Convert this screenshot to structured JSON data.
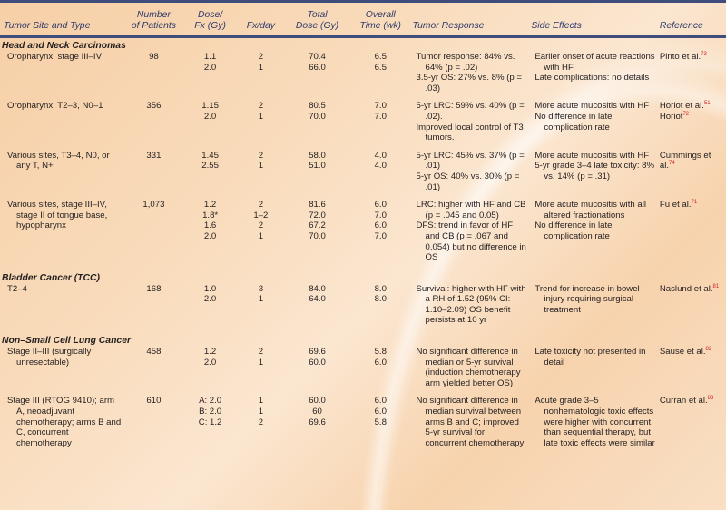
{
  "table": {
    "columns": [
      "Tumor Site and Type",
      "Number of Patients",
      "Dose/ Fx (Gy)",
      "Fx/day",
      "Total Dose (Gy)",
      "Overall Time (wk)",
      "Tumor Response",
      "Side Effects",
      "Reference"
    ],
    "header_lines": {
      "patients": [
        "Number",
        "of Patients"
      ],
      "dose": [
        "Dose/",
        "Fx (Gy)"
      ],
      "total": [
        "Total",
        "Dose (Gy)"
      ],
      "time": [
        "Overall",
        "Time (wk)"
      ]
    },
    "sections": [
      {
        "title": "Head and Neck Carcinomas",
        "rows": [
          {
            "site": "Oropharynx, stage III–IV",
            "patients": "98",
            "dose_fx": [
              "1.1",
              "2.0"
            ],
            "fx_day": [
              "2",
              "1"
            ],
            "total_dose": [
              "70.4",
              "66.0"
            ],
            "overall_time": [
              "6.5",
              "6.5"
            ],
            "tumor_response": [
              "Tumor response: 84% vs. 64% (p = .02)",
              "3.5-yr OS: 27% vs. 8% (p = .03)"
            ],
            "side_effects": [
              "Earlier onset of acute reactions with HF",
              "Late complications: no details"
            ],
            "reference": [
              {
                "text": "Pinto et al.",
                "sup": "73"
              }
            ]
          },
          {
            "site": "Oropharynx, T2–3, N0–1",
            "patients": "356",
            "dose_fx": [
              "1.15",
              "2.0"
            ],
            "fx_day": [
              "2",
              "1"
            ],
            "total_dose": [
              "80.5",
              "70.0"
            ],
            "overall_time": [
              "7.0",
              "7.0"
            ],
            "tumor_response": [
              "5-yr LRC: 59% vs. 40% (p = .02).",
              "Improved local control of T3 tumors."
            ],
            "side_effects": [
              "More acute mucositis with HF",
              "No difference in late complication rate"
            ],
            "reference": [
              {
                "text": "Horiot et al.",
                "sup": "51"
              },
              {
                "text": "Horiot",
                "sup": "72"
              }
            ]
          },
          {
            "site": "Various sites, T3–4, N0, or any T, N+",
            "patients": "331",
            "dose_fx": [
              "1.45",
              "2.55"
            ],
            "fx_day": [
              "2",
              "1"
            ],
            "total_dose": [
              "58.0",
              "51.0"
            ],
            "overall_time": [
              "4.0",
              "4.0"
            ],
            "tumor_response": [
              "5-yr LRC: 45% vs. 37% (p = .01)",
              "5-yr OS: 40% vs. 30% (p = .01)"
            ],
            "side_effects": [
              "More acute mucositis with HF",
              "5-yr grade 3–4 late toxicity: 8% vs. 14% (p = .31)"
            ],
            "reference": [
              {
                "text": "Cummings et al.",
                "sup": "74"
              }
            ]
          },
          {
            "site": "Various sites, stage III–IV, stage II of tongue base, hypopharynx",
            "patients": "1,073",
            "dose_fx": [
              "1.2",
              "1.8*",
              "1.6",
              "2.0"
            ],
            "fx_day": [
              "2",
              "1–2",
              "2",
              "1"
            ],
            "total_dose": [
              "81.6",
              "72.0",
              "67.2",
              "70.0"
            ],
            "overall_time": [
              "6.0",
              "7.0",
              "6.0",
              "7.0"
            ],
            "tumor_response": [
              "LRC: higher with HF and CB (p = .045 and 0.05)",
              "DFS: trend in favor of HF and CB (p = .067 and 0.054) but no difference in OS"
            ],
            "side_effects": [
              "More acute mucositis with all altered fractionations",
              "No difference in late complication rate"
            ],
            "reference": [
              {
                "text": "Fu et al.",
                "sup": "71"
              }
            ]
          }
        ]
      },
      {
        "title": "Bladder Cancer (TCC)",
        "rows": [
          {
            "site": "T2–4",
            "patients": "168",
            "dose_fx": [
              "1.0",
              "2.0"
            ],
            "fx_day": [
              "3",
              "1"
            ],
            "total_dose": [
              "84.0",
              "64.0"
            ],
            "overall_time": [
              "8.0",
              "8.0"
            ],
            "tumor_response": [
              "Survival: higher with HF with a RH of 1.52 (95% CI: 1.10–2.09) OS benefit persists at 10 yr"
            ],
            "side_effects": [
              "Trend for increase in bowel injury requiring surgical treatment"
            ],
            "reference": [
              {
                "text": "Naslund et al.",
                "sup": "81"
              }
            ]
          }
        ]
      },
      {
        "title": "Non–Small Cell Lung Cancer",
        "rows": [
          {
            "site": "Stage II–III (surgically unresectable)",
            "patients": "458",
            "dose_fx": [
              "1.2",
              "2.0"
            ],
            "fx_day": [
              "2",
              "1"
            ],
            "total_dose": [
              "69.6",
              "60.0"
            ],
            "overall_time": [
              "5.8",
              "6.0"
            ],
            "tumor_response": [
              "No significant difference in median or 5-yr survival (induction chemotherapy arm yielded better OS)"
            ],
            "side_effects": [
              "Late toxicity not presented in detail"
            ],
            "reference": [
              {
                "text": "Sause et al.",
                "sup": "82"
              }
            ]
          },
          {
            "site": "Stage III (RTOG 9410); arm A, neoadjuvant chemotherapy; arms B and C, concurrent chemotherapy",
            "patients": "610",
            "dose_fx": [
              "A: 2.0",
              "B: 2.0",
              "C: 1.2"
            ],
            "fx_day": [
              "1",
              "1",
              "2"
            ],
            "total_dose": [
              "60.0",
              "60",
              "69.6"
            ],
            "overall_time": [
              "6.0",
              "6.0",
              "5.8"
            ],
            "tumor_response": [
              "No significant difference in median survival between arms B and C; improved 5-yr survival for concurrent chemotherapy"
            ],
            "side_effects": [
              "Acute grade 3–5 nonhematologic toxic effects were higher with concurrent than sequential therapy, but late toxic effects were similar"
            ],
            "reference": [
              {
                "text": "Curran et al.",
                "sup": "83"
              }
            ]
          }
        ]
      }
    ]
  },
  "colors": {
    "header_rule": "#3f4d7d",
    "header_text": "#2e3a6b",
    "reference_superscript": "#d2232a",
    "background": "#f9dcbc"
  }
}
